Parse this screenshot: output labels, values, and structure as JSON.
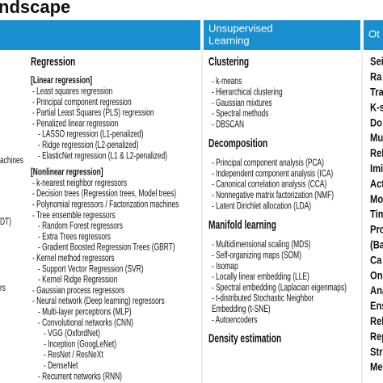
{
  "title": "ndscape",
  "headers": {
    "middle": [
      "Unsupervised",
      "Learning"
    ],
    "right": "Ot"
  },
  "left_fragments": [
    "achines",
    "DT)",
    "rs"
  ],
  "regression": {
    "heading": "Regression",
    "groups": [
      {
        "label": "[Linear regression]",
        "items": [
          {
            "text": "- Least squares regression"
          },
          {
            "text": "- Principal component regression"
          },
          {
            "text": "- Partial Least Squares (PLS) regression"
          },
          {
            "text": "- Penalized linear regression",
            "children": [
              {
                "text": "- LASSO regression (L1-penalized)"
              },
              {
                "text": "- Ridge regression (L2-penalized)"
              },
              {
                "text": "- ElasticNet regression (L1 & L2-penalized)"
              }
            ]
          }
        ]
      },
      {
        "label": "[Nonlinear regression]",
        "items": [
          {
            "text": "- k-nearest neighbor regressors"
          },
          {
            "text": "- Decision trees (Regression trees, Model trees)"
          },
          {
            "text": "- Polynomial regressors / Factorization machines"
          },
          {
            "text": "- Tree ensemble regressors",
            "children": [
              {
                "text": "- Random Forest regressors"
              },
              {
                "text": "- Extra Trees regressors"
              },
              {
                "text": "- Gradient Boosted Regression Trees (GBRT)"
              }
            ]
          },
          {
            "text": "- Kernel method regressors",
            "children": [
              {
                "text": "- Support Vector Regression (SVR)"
              },
              {
                "text": "- Kernel Ridge Regression"
              }
            ]
          },
          {
            "text": "- Gaussian process regressors"
          },
          {
            "text": "- Neural network (Deep learning) regressors",
            "children": [
              {
                "text": "- Multi-layer perceptrons (MLP)"
              },
              {
                "text": "- Convolutional networks (CNN)",
                "children": [
                  {
                    "text": "- VGG (OxfordNet)"
                  },
                  {
                    "text": "- Inception (GoogLeNet)"
                  },
                  {
                    "text": "- ResNet / ResNeXt"
                  },
                  {
                    "text": "- DenseNet"
                  }
                ]
              },
              {
                "text": "- Recurrent networks (RNN)"
              }
            ]
          }
        ]
      }
    ]
  },
  "unsupervised": [
    {
      "heading": "Clustering",
      "items": [
        "- k-means",
        "- Hierarchical clustering",
        "- Gaussian mixtures",
        "- Spectral methods",
        "- DBSCAN"
      ]
    },
    {
      "heading": "Decomposition",
      "items": [
        "- Principal component analysis (PCA)",
        "- Independent component analysis (ICA)",
        "- Canonical correlation analysis (CCA)",
        "- Nonnegative matrix factorization (NMF)",
        "- Latent Dirichlet allocation (LDA)"
      ]
    },
    {
      "heading": "Manifold learning",
      "items": [
        "- Multidimensional scaling (MDS)",
        "- Self-organizing maps (SOM)",
        "- Isomap",
        "- Locally linear embedding (LLE)",
        "- Spectral embedding (Laplacian eigenmaps)",
        "- t-distributed Stochastic Neighbor",
        "  Embedding (t-SNE)",
        "- Autoencoders"
      ]
    },
    {
      "heading": "Density estimation",
      "items": []
    }
  ],
  "right_fragments": [
    "Sei",
    "Ra",
    "Tra",
    "K-s",
    "Do",
    "Mu",
    "Rel",
    "Imi",
    "Act",
    "Mo",
    "Tim",
    "Pro",
    "(Ba",
    "Ca",
    "On",
    "Ana",
    "Ens",
    "Rel",
    "Rep",
    "Str",
    "Me"
  ]
}
